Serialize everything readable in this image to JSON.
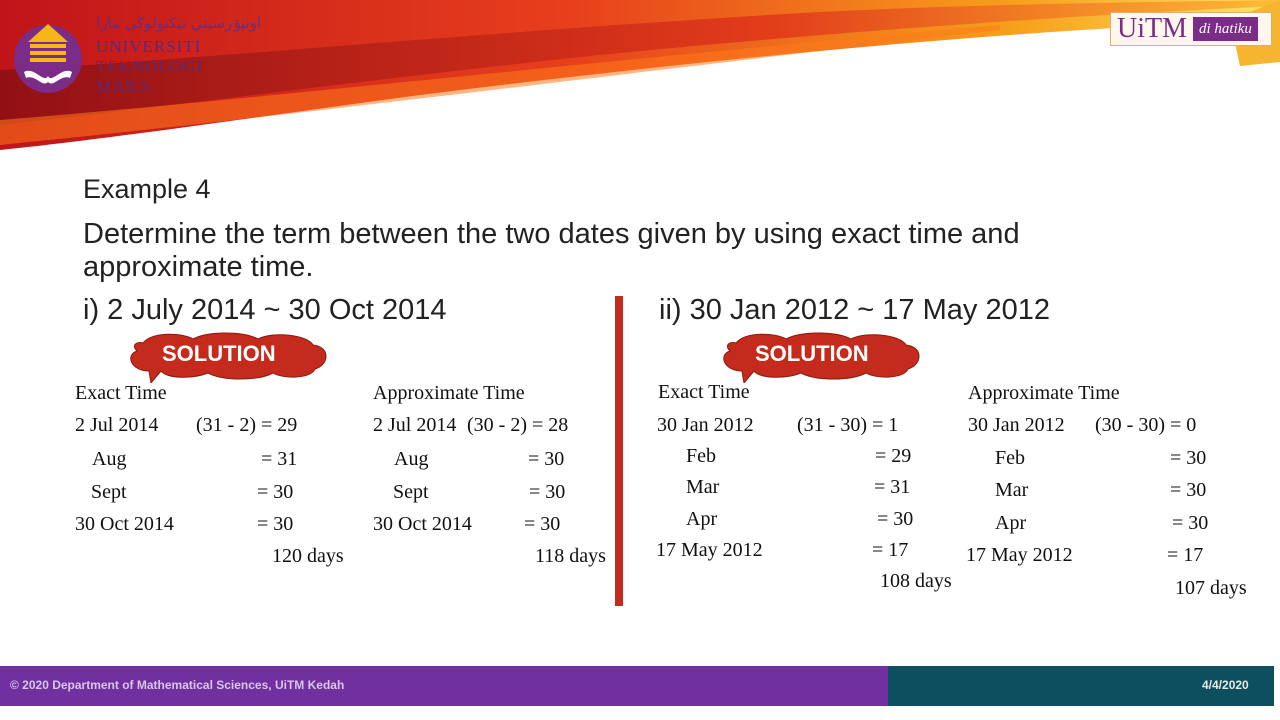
{
  "header": {
    "logo_arabic": "اونيۏرسيتي تيكنولوڬي مارا",
    "logo_lines": [
      "UNIVERSITI",
      "TEKNOLOGI",
      "MARA"
    ],
    "slogan_brand": "UiTM",
    "slogan_tag": "di hatiku"
  },
  "slide": {
    "title": "Example 4",
    "question_line1": "Determine the term between the two dates given by using exact time and",
    "question_line2": "approximate time."
  },
  "part_i": {
    "heading": "i)  2 July 2014 ~ 30 Oct 2014",
    "badge": "SOLUTION",
    "exact": {
      "title": "Exact Time",
      "rows": [
        {
          "label": "2 Jul 2014",
          "value": "(31 - 2) = 29"
        },
        {
          "label": "Aug",
          "value": "= 31"
        },
        {
          "label": "Sept",
          "value": "= 30"
        },
        {
          "label": "30 Oct 2014",
          "value": "= 30"
        }
      ],
      "total": "120 days"
    },
    "approx": {
      "title": "Approximate Time",
      "rows": [
        {
          "label": "2  Jul 2014",
          "value": "(30 - 2) = 28"
        },
        {
          "label": "Aug",
          "value": "= 30"
        },
        {
          "label": "Sept",
          "value": "= 30"
        },
        {
          "label": "30 Oct 2014",
          "value": "= 30"
        }
      ],
      "total": "118 days"
    }
  },
  "part_ii": {
    "heading": "ii)  30 Jan 2012 ~ 17 May 2012",
    "badge": "SOLUTION",
    "exact": {
      "title": "Exact  Time",
      "rows": [
        {
          "label": "30 Jan  2012",
          "value": "(31 - 30)  = 1"
        },
        {
          "label": "Feb",
          "value": "= 29"
        },
        {
          "label": "Mar",
          "value": "= 31"
        },
        {
          "label": "Apr",
          "value": "= 30"
        },
        {
          "label": "17  May  2012",
          "value": "= 17"
        }
      ],
      "total": "108 days"
    },
    "approx": {
      "title": "Approximate Time",
      "rows": [
        {
          "label": "30 Jan 2012",
          "value": "(30 - 30) = 0"
        },
        {
          "label": "Feb",
          "value": "= 30"
        },
        {
          "label": "Mar",
          "value": "= 30"
        },
        {
          "label": "Apr",
          "value": "= 30"
        },
        {
          "label": "17 May 2012",
          "value": "= 17"
        }
      ],
      "total": "107 days"
    }
  },
  "footer": {
    "copyright": "© 2020 Department of Mathematical Sciences, UiTM Kedah",
    "date": "4/4/2020"
  },
  "colors": {
    "purple": "#7030a0",
    "teal": "#0d4f5f",
    "red": "#c42b1c",
    "orange": "#f5a623"
  }
}
